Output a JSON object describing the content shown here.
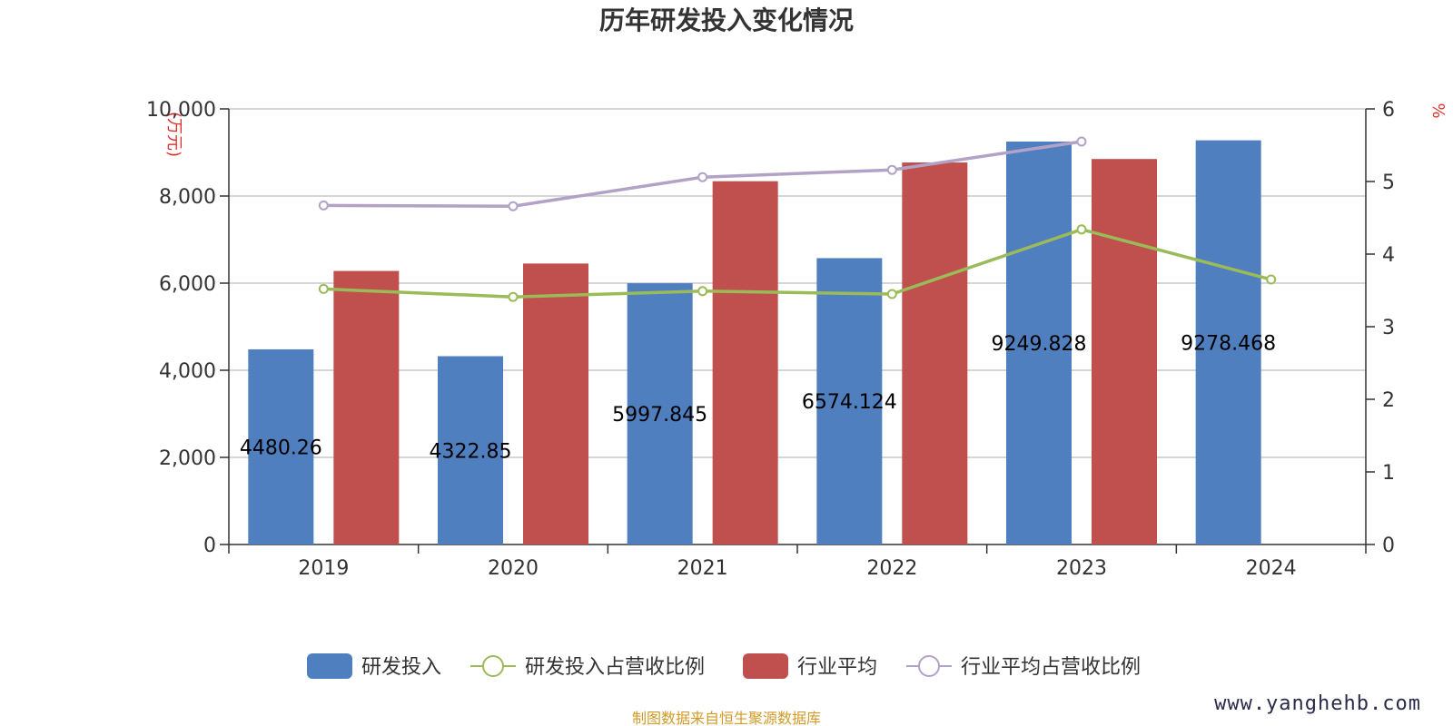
{
  "chart_data": {
    "type": "bar",
    "title": "历年研发投入变化情况",
    "categories": [
      "2019",
      "2020",
      "2021",
      "2022",
      "2023",
      "2024"
    ],
    "left_axis": {
      "unit": "(万元)",
      "ylim": [
        0,
        10000
      ],
      "ticks": [
        "0",
        "2,000",
        "4,000",
        "6,000",
        "8,000",
        "10,000"
      ]
    },
    "right_axis": {
      "unit": "%",
      "ylim": [
        0,
        6
      ],
      "ticks": [
        "0",
        "1",
        "2",
        "3",
        "4",
        "5",
        "6"
      ]
    },
    "series": [
      {
        "name": "研发投入",
        "type": "bar",
        "axis": "left",
        "color": "#4f7fbe",
        "values": [
          4480.26,
          4322.85,
          5997.845,
          6574.124,
          9249.828,
          9278.468
        ],
        "labels": [
          "4480.26",
          "4322.85",
          "5997.845",
          "6574.124",
          "9249.828",
          "9278.468"
        ]
      },
      {
        "name": "行业平均",
        "type": "bar",
        "axis": "left",
        "color": "#c0504d",
        "values": [
          6280,
          6450,
          8340,
          8770,
          8850,
          null
        ]
      },
      {
        "name": "研发投入占营收比例",
        "type": "line",
        "axis": "right",
        "color": "#9bbb59",
        "values": [
          3.52,
          3.41,
          3.49,
          3.45,
          4.34,
          3.65
        ]
      },
      {
        "name": "行业平均占营收比例",
        "type": "line",
        "axis": "right",
        "color": "#b3a2c7",
        "values": [
          4.67,
          4.66,
          5.06,
          5.16,
          5.55,
          null
        ]
      }
    ],
    "legend_position": "bottom",
    "grid": true
  },
  "source": "制图数据来自恒生聚源数据库",
  "watermark": "www.yanghehb.com"
}
